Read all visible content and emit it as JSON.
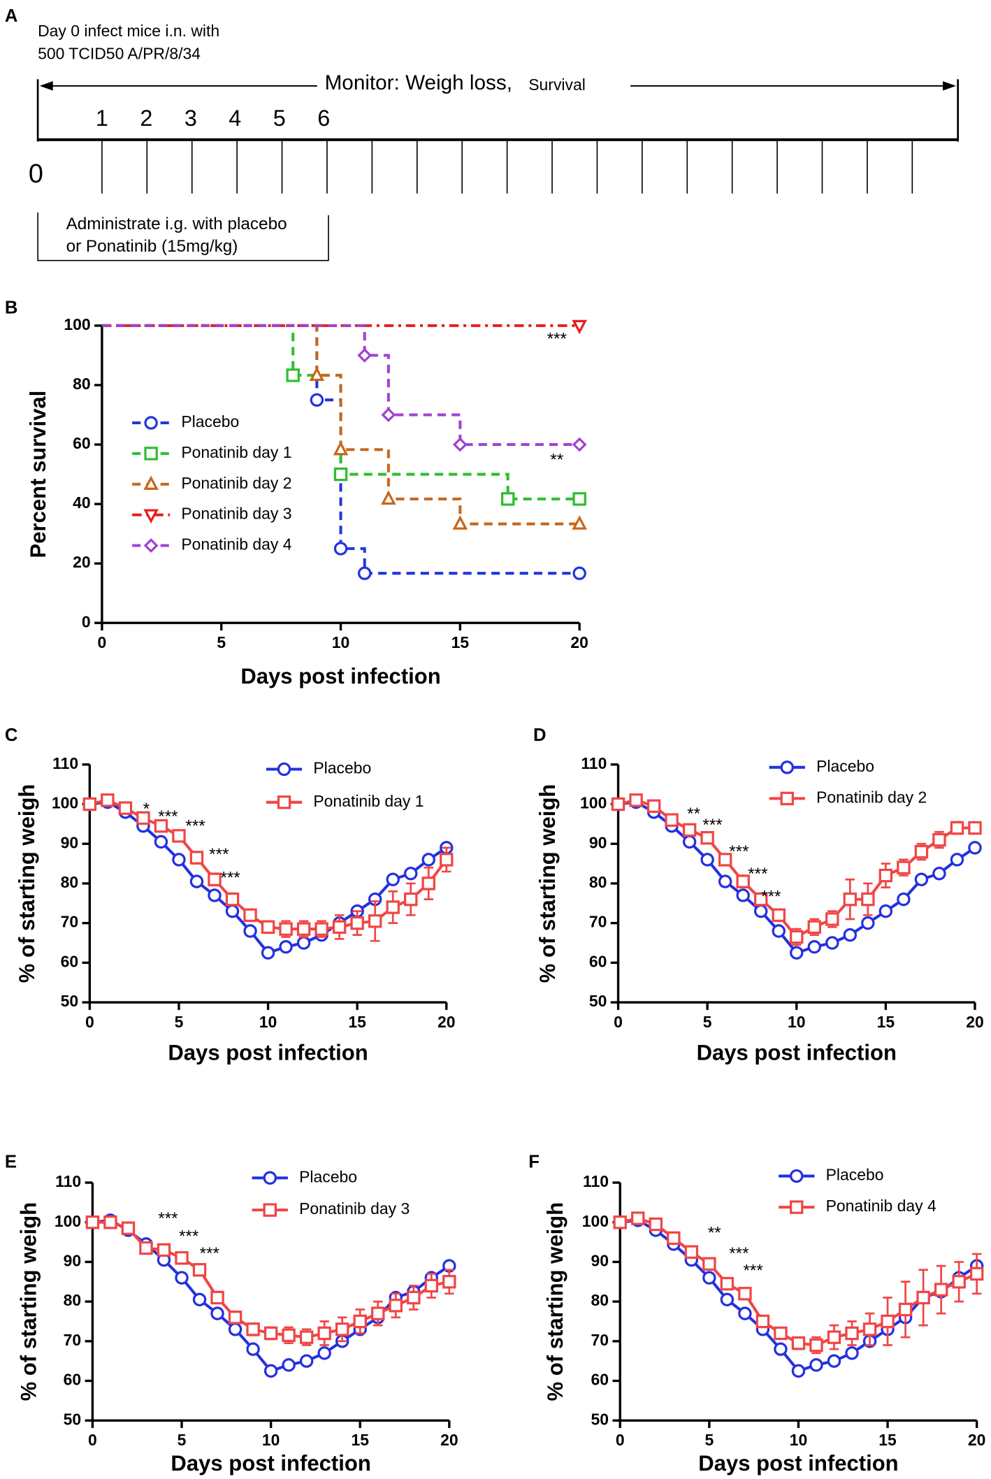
{
  "diagram": {
    "panel": "A",
    "infection": [
      "Day 0 infect mice i.n. with",
      "500 TCID50 A/PR/8/34"
    ],
    "monitor": "Monitor: Weigh loss,",
    "monitor_small": "Survival",
    "days": [
      "0",
      "1",
      "2",
      "3",
      "4",
      "5",
      "6"
    ],
    "treatment": [
      "Administrate i.g. with placebo",
      "or Ponatinib (15mg/kg)"
    ]
  },
  "chart_data": [
    {
      "type": "survival",
      "panel": "B",
      "xlabel": "Days post infection",
      "ylabel": "Percent survival",
      "xlim": [
        0,
        20
      ],
      "ylim": [
        0,
        100
      ],
      "xticks": [
        0,
        5,
        10,
        15,
        20
      ],
      "yticks": [
        0,
        20,
        40,
        60,
        80,
        100
      ],
      "series": [
        {
          "name": "Placebo",
          "color": "#2436dc",
          "marker": "circle",
          "line_style": "dashed",
          "x": [
            0,
            9,
            10,
            11,
            20
          ],
          "values": [
            100,
            75,
            25,
            16.7,
            16.7
          ]
        },
        {
          "name": "Ponatinib day 1",
          "color": "#2ebf2e",
          "marker": "square",
          "line_style": "dashed",
          "x": [
            0,
            8,
            10,
            17,
            20
          ],
          "values": [
            100,
            83.3,
            50,
            41.7,
            41.7
          ]
        },
        {
          "name": "Ponatinib day 2",
          "color": "#c8661a",
          "marker": "triangle",
          "line_style": "dashed",
          "x": [
            0,
            9,
            10,
            12,
            15,
            20
          ],
          "values": [
            100,
            83.3,
            58.3,
            41.7,
            33.3,
            33.3
          ]
        },
        {
          "name": "Ponatinib day 3",
          "color": "#e61e1e",
          "marker": "triangle-down",
          "line_style": "dashdot",
          "x": [
            0,
            20
          ],
          "values": [
            100,
            100
          ]
        },
        {
          "name": "Ponatinib day 4",
          "color": "#a142d2",
          "marker": "diamond",
          "line_style": "dashed",
          "x": [
            0,
            11,
            12,
            15,
            20
          ],
          "values": [
            100,
            90,
            70,
            60,
            60
          ]
        }
      ],
      "annotations": [
        "***",
        "**"
      ]
    },
    {
      "type": "line",
      "panel": "C",
      "xlabel": "Days post infection",
      "ylabel": "% of starting weigh",
      "xlim": [
        0,
        20
      ],
      "ylim": [
        50,
        110
      ],
      "xticks": [
        0,
        5,
        10,
        15,
        20
      ],
      "yticks": [
        50,
        60,
        70,
        80,
        90,
        100,
        110
      ],
      "x": [
        0,
        1,
        2,
        3,
        4,
        5,
        6,
        7,
        8,
        9,
        10,
        11,
        12,
        13,
        14,
        15,
        16,
        17,
        18,
        19,
        20
      ],
      "series": [
        {
          "name": "Placebo",
          "color": "#2430e0",
          "marker": "circle",
          "values": [
            100,
            100.5,
            98,
            94.5,
            90.5,
            86,
            80.5,
            77,
            73,
            68,
            62.5,
            64,
            65,
            67,
            70,
            73,
            76,
            81,
            82.5,
            86,
            89
          ]
        },
        {
          "name": "Ponatinib day 1",
          "color": "#f04646",
          "marker": "square",
          "values": [
            100,
            101,
            99,
            96.5,
            94.5,
            92,
            86.5,
            81,
            76,
            72,
            69,
            68.5,
            68.5,
            68.5,
            69,
            70,
            70.5,
            74,
            76,
            80,
            86
          ],
          "errors": [
            0,
            1,
            1,
            1,
            1,
            1,
            1.5,
            1.5,
            1.5,
            1.5,
            1.5,
            2,
            2,
            2,
            3,
            3,
            5,
            4,
            4,
            4,
            3
          ]
        }
      ],
      "annotations": [
        "*",
        "***",
        "***",
        "***",
        "***"
      ]
    },
    {
      "type": "line",
      "panel": "D",
      "xlabel": "Days post infection",
      "ylabel": "% of starting weigh",
      "xlim": [
        0,
        20
      ],
      "ylim": [
        50,
        110
      ],
      "xticks": [
        0,
        5,
        10,
        15,
        20
      ],
      "yticks": [
        50,
        60,
        70,
        80,
        90,
        100,
        110
      ],
      "x": [
        0,
        1,
        2,
        3,
        4,
        5,
        6,
        7,
        8,
        9,
        10,
        11,
        12,
        13,
        14,
        15,
        16,
        17,
        18,
        19,
        20
      ],
      "series": [
        {
          "name": "Placebo",
          "color": "#2430e0",
          "marker": "circle",
          "values": [
            100,
            100.5,
            98,
            94.5,
            90.5,
            86,
            80.5,
            77,
            73,
            68,
            62.5,
            64,
            65,
            67,
            70,
            73,
            76,
            81,
            82.5,
            86,
            89
          ]
        },
        {
          "name": "Ponatinib day 2",
          "color": "#f04646",
          "marker": "square",
          "values": [
            100,
            101,
            99.5,
            96,
            93.5,
            91.5,
            86,
            80.5,
            76,
            72,
            66.5,
            69,
            71,
            76,
            76,
            82,
            84,
            88,
            91,
            94,
            94
          ],
          "errors": [
            0,
            1,
            1,
            1,
            1,
            1,
            1,
            1.5,
            1.5,
            1.5,
            2,
            2,
            2,
            5,
            4,
            3,
            2,
            2,
            2,
            1.5,
            1
          ]
        }
      ],
      "annotations": [
        "**",
        "***",
        "***",
        "***",
        "***"
      ]
    },
    {
      "type": "line",
      "panel": "E",
      "xlabel": "Days post infection",
      "ylabel": "% of starting weigh",
      "xlim": [
        0,
        20
      ],
      "ylim": [
        50,
        110
      ],
      "xticks": [
        0,
        5,
        10,
        15,
        20
      ],
      "yticks": [
        50,
        60,
        70,
        80,
        90,
        100,
        110
      ],
      "x": [
        0,
        1,
        2,
        3,
        4,
        5,
        6,
        7,
        8,
        9,
        10,
        11,
        12,
        13,
        14,
        15,
        16,
        17,
        18,
        19,
        20
      ],
      "series": [
        {
          "name": "Placebo",
          "color": "#2430e0",
          "marker": "circle",
          "values": [
            100,
            100.5,
            98,
            94.5,
            90.5,
            86,
            80.5,
            77,
            73,
            68,
            62.5,
            64,
            65,
            67,
            70,
            73,
            76,
            81,
            82.5,
            86,
            89
          ]
        },
        {
          "name": "Ponatinib day 3",
          "color": "#f04646",
          "marker": "square",
          "values": [
            100,
            100,
            98.5,
            93.5,
            93,
            91,
            88,
            81,
            76,
            73,
            72,
            71.5,
            71,
            72,
            73,
            75,
            77,
            79,
            81,
            84,
            85
          ],
          "errors": [
            0,
            1,
            1,
            1,
            1,
            1,
            1,
            1,
            1.5,
            1.5,
            1.5,
            2,
            2,
            3,
            3,
            3,
            3,
            3,
            3,
            3,
            3
          ]
        }
      ],
      "annotations": [
        "***",
        "***",
        "***"
      ]
    },
    {
      "type": "line",
      "panel": "F",
      "xlabel": "Days post infection",
      "ylabel": "% of starting weigh",
      "xlim": [
        0,
        20
      ],
      "ylim": [
        50,
        110
      ],
      "xticks": [
        0,
        5,
        10,
        15,
        20
      ],
      "yticks": [
        50,
        60,
        70,
        80,
        90,
        100,
        110
      ],
      "x": [
        0,
        1,
        2,
        3,
        4,
        5,
        6,
        7,
        8,
        9,
        10,
        11,
        12,
        13,
        14,
        15,
        16,
        17,
        18,
        19,
        20
      ],
      "series": [
        {
          "name": "Placebo",
          "color": "#2430e0",
          "marker": "circle",
          "values": [
            100,
            100.5,
            98,
            94.5,
            90.5,
            86,
            80.5,
            77,
            73,
            68,
            62.5,
            64,
            65,
            67,
            70,
            73,
            76,
            81,
            82.5,
            86,
            89
          ]
        },
        {
          "name": "Ponatinib day 4",
          "color": "#f04646",
          "marker": "square",
          "values": [
            100,
            101,
            99.5,
            96,
            92.5,
            89.5,
            84.5,
            82,
            75,
            72,
            69.5,
            69,
            71,
            72,
            73,
            75,
            78,
            81,
            83,
            85,
            87
          ],
          "errors": [
            0,
            1,
            1,
            1,
            1,
            1,
            1,
            1,
            1,
            1,
            1.5,
            2,
            3,
            3,
            4,
            6,
            7,
            7,
            6,
            5,
            5
          ]
        }
      ],
      "annotations": [
        "**",
        "***",
        "***"
      ]
    }
  ]
}
